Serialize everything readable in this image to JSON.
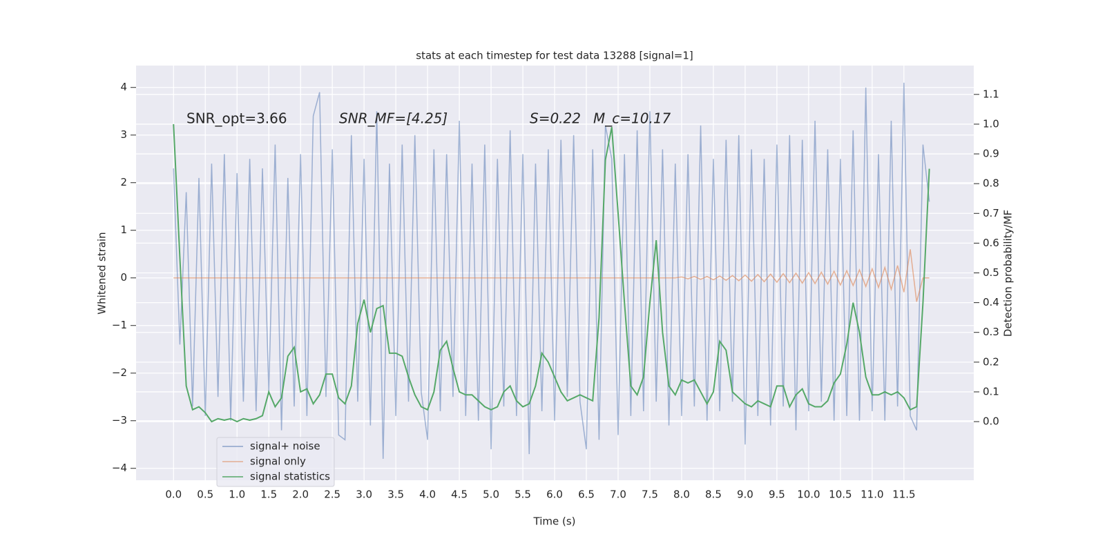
{
  "chart_data": {
    "type": "line",
    "title": "stats at each timestep for test data 13288 [signal=1]",
    "xlabel": "Time (s)",
    "ylabel": "Whitened strain",
    "y2label": "Detection probability/MF",
    "annotations": [
      "SNR_opt=3.66",
      "SNR_MF=[4.25]",
      "S=0.22",
      "M_c=10.17"
    ],
    "grid": true,
    "legend": "lower left",
    "xlim": [
      -0.59,
      12.6
    ],
    "ylim": [
      -4.25,
      4.46
    ],
    "y2lim": [
      -0.197,
      1.197
    ],
    "xticks": [
      {
        "value": 0,
        "label": "0.0"
      },
      {
        "value": 0.5,
        "label": "0.5"
      },
      {
        "value": 1,
        "label": "1.0"
      },
      {
        "value": 1.5,
        "label": "1.5"
      },
      {
        "value": 2,
        "label": "2.0"
      },
      {
        "value": 2.5,
        "label": "2.5"
      },
      {
        "value": 3,
        "label": "3.0"
      },
      {
        "value": 3.5,
        "label": "3.5"
      },
      {
        "value": 4,
        "label": "4.0"
      },
      {
        "value": 4.5,
        "label": "4.5"
      },
      {
        "value": 5,
        "label": "5.0"
      },
      {
        "value": 5.5,
        "label": "5.5"
      },
      {
        "value": 6,
        "label": "6.0"
      },
      {
        "value": 6.5,
        "label": "6.5"
      },
      {
        "value": 7,
        "label": "7.0"
      },
      {
        "value": 7.5,
        "label": "7.5"
      },
      {
        "value": 8,
        "label": "8.0"
      },
      {
        "value": 8.5,
        "label": "8.5"
      },
      {
        "value": 9,
        "label": "9.0"
      },
      {
        "value": 9.5,
        "label": "9.5"
      },
      {
        "value": 10,
        "label": "10.0"
      },
      {
        "value": 10.5,
        "label": "10.5"
      },
      {
        "value": 11,
        "label": "11.0"
      },
      {
        "value": 11.5,
        "label": "11.5"
      }
    ],
    "yticks": [
      {
        "value": -4,
        "label": "−4"
      },
      {
        "value": -3,
        "label": "−3"
      },
      {
        "value": -2,
        "label": "−2"
      },
      {
        "value": -1,
        "label": "−1"
      },
      0,
      1,
      2,
      3,
      4
    ],
    "y2ticks": [
      {
        "value": 0,
        "label": "0.0"
      },
      0.1,
      0.2,
      0.3,
      0.4,
      0.5,
      0.6,
      0.7,
      0.8,
      0.9,
      {
        "value": 1,
        "label": "1.0"
      },
      1.1
    ],
    "x": [
      0.0,
      0.1,
      0.2,
      0.3,
      0.4,
      0.5,
      0.6,
      0.7,
      0.8,
      0.9,
      1.0,
      1.1,
      1.2,
      1.3,
      1.4,
      1.5,
      1.6,
      1.7,
      1.8,
      1.9,
      2.0,
      2.1,
      2.2,
      2.3,
      2.4,
      2.5,
      2.6,
      2.7,
      2.8,
      2.9,
      3.0,
      3.1,
      3.2,
      3.3,
      3.4,
      3.5,
      3.6,
      3.7,
      3.8,
      3.9,
      4.0,
      4.1,
      4.2,
      4.3,
      4.4,
      4.5,
      4.6,
      4.7,
      4.8,
      4.9,
      5.0,
      5.1,
      5.2,
      5.3,
      5.4,
      5.5,
      5.6,
      5.7,
      5.8,
      5.9,
      6.0,
      6.1,
      6.2,
      6.3,
      6.4,
      6.5,
      6.6,
      6.7,
      6.8,
      6.9,
      7.0,
      7.1,
      7.2,
      7.3,
      7.4,
      7.5,
      7.6,
      7.7,
      7.8,
      7.9,
      8.0,
      8.1,
      8.2,
      8.3,
      8.4,
      8.5,
      8.6,
      8.7,
      8.8,
      8.9,
      9.0,
      9.1,
      9.2,
      9.3,
      9.4,
      9.5,
      9.6,
      9.7,
      9.8,
      9.9,
      10.0,
      10.1,
      10.2,
      10.3,
      10.4,
      10.5,
      10.6,
      10.7,
      10.8,
      10.9,
      11.0,
      11.1,
      11.2,
      11.3,
      11.4,
      11.5,
      11.6,
      11.7,
      11.8,
      11.9
    ],
    "series": [
      {
        "name": "signal+ noise",
        "color": "#4c72b0",
        "values": [
          2.3,
          -1.4,
          1.8,
          -2.7,
          2.1,
          -2.9,
          2.4,
          -2.5,
          2.6,
          -3.0,
          2.2,
          -2.6,
          2.5,
          -2.8,
          2.3,
          -2.4,
          2.8,
          -3.2,
          2.1,
          -2.7,
          2.6,
          -2.9,
          3.4,
          3.9,
          -2.5,
          2.7,
          -3.3,
          -3.4,
          3.0,
          -2.6,
          2.5,
          -3.1,
          3.5,
          -3.8,
          2.4,
          -2.9,
          2.8,
          -2.6,
          3.0,
          -2.4,
          -3.4,
          2.7,
          -2.8,
          2.6,
          -2.5,
          3.3,
          -2.9,
          2.4,
          -3.0,
          2.8,
          -3.6,
          2.5,
          -2.7,
          3.1,
          -2.9,
          2.6,
          -3.7,
          2.4,
          -2.8,
          2.7,
          -3.0,
          2.9,
          -2.5,
          3.0,
          -2.6,
          -3.6,
          2.7,
          -3.4,
          3.2,
          2.5,
          -3.3,
          2.6,
          -2.9,
          3.1,
          -2.8,
          3.5,
          -2.6,
          2.7,
          -3.1,
          2.4,
          -2.9,
          2.6,
          -2.7,
          3.2,
          -3.0,
          2.5,
          -2.8,
          2.9,
          -2.6,
          3.0,
          -3.5,
          2.7,
          -2.9,
          2.5,
          -3.1,
          2.8,
          -2.7,
          3.0,
          -3.2,
          2.9,
          -2.8,
          3.3,
          -2.6,
          2.7,
          -3.0,
          2.5,
          -2.9,
          3.1,
          -3.0,
          4.0,
          -2.8,
          2.6,
          -3.0,
          3.3,
          -2.7,
          4.1,
          -2.9,
          -3.2,
          2.8,
          1.6
        ]
      },
      {
        "name": "signal only",
        "color": "#dd8452",
        "values": [
          0,
          0,
          0,
          0,
          0,
          0,
          0,
          0,
          0,
          0,
          0,
          0,
          0,
          0,
          0,
          0,
          0,
          0,
          0,
          0,
          0,
          0,
          0,
          0,
          0,
          0,
          0,
          0,
          0,
          0,
          0,
          0,
          0,
          0,
          0,
          0,
          0,
          0,
          0,
          0,
          0,
          0,
          0,
          0,
          0,
          0,
          0,
          0,
          0,
          0,
          0,
          0,
          0,
          0,
          0,
          0,
          0,
          0,
          0,
          0,
          0,
          0,
          0,
          0,
          0,
          0,
          0,
          0,
          0,
          0,
          0,
          0,
          0,
          0,
          0,
          0,
          0,
          0,
          0,
          0,
          0.02,
          -0.02,
          0.03,
          -0.03,
          0.03,
          -0.04,
          0.04,
          -0.05,
          0.05,
          -0.06,
          0.06,
          -0.07,
          0.07,
          -0.08,
          0.08,
          -0.09,
          0.09,
          -0.1,
          0.1,
          -0.11,
          0.11,
          -0.12,
          0.12,
          -0.13,
          0.14,
          -0.15,
          0.15,
          -0.16,
          0.17,
          -0.18,
          0.19,
          -0.2,
          0.22,
          -0.24,
          0.26,
          -0.3,
          0.6,
          -0.5,
          0.0,
          0.0
        ]
      },
      {
        "name": "signal statistics",
        "color": "#55a868",
        "axis": "y2",
        "values": [
          1.0,
          0.55,
          0.12,
          0.04,
          0.05,
          0.03,
          0.0,
          0.01,
          0.005,
          0.01,
          0.0,
          0.01,
          0.005,
          0.01,
          0.02,
          0.1,
          0.05,
          0.08,
          0.22,
          0.25,
          0.1,
          0.11,
          0.06,
          0.09,
          0.16,
          0.16,
          0.08,
          0.06,
          0.12,
          0.33,
          0.41,
          0.3,
          0.38,
          0.39,
          0.23,
          0.23,
          0.22,
          0.15,
          0.09,
          0.05,
          0.04,
          0.1,
          0.24,
          0.27,
          0.18,
          0.1,
          0.09,
          0.09,
          0.07,
          0.05,
          0.04,
          0.05,
          0.1,
          0.12,
          0.07,
          0.05,
          0.06,
          0.12,
          0.23,
          0.2,
          0.15,
          0.1,
          0.07,
          0.08,
          0.09,
          0.08,
          0.07,
          0.35,
          0.88,
          0.99,
          0.7,
          0.4,
          0.12,
          0.09,
          0.15,
          0.4,
          0.61,
          0.3,
          0.12,
          0.09,
          0.14,
          0.13,
          0.14,
          0.1,
          0.06,
          0.1,
          0.27,
          0.24,
          0.1,
          0.08,
          0.06,
          0.05,
          0.07,
          0.06,
          0.05,
          0.12,
          0.12,
          0.05,
          0.09,
          0.11,
          0.06,
          0.05,
          0.05,
          0.07,
          0.13,
          0.16,
          0.26,
          0.4,
          0.3,
          0.15,
          0.09,
          0.09,
          0.1,
          0.09,
          0.1,
          0.08,
          0.04,
          0.05,
          0.4,
          0.85
        ]
      }
    ]
  }
}
